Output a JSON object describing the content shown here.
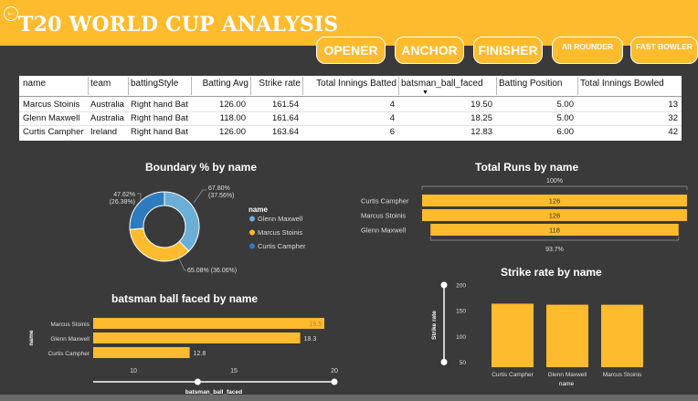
{
  "header": {
    "title": "T20 WORLD CUP ANALYSIS",
    "back_icon": "back-arrow-icon"
  },
  "nav": {
    "opener": "OPENER",
    "anchor": "ANCHOR",
    "finisher": "FINISHER",
    "all_rounder": "All ROUNDER",
    "fast_bowler": "FAST BOWLER"
  },
  "table": {
    "headers": [
      "name",
      "team",
      "battingStyle",
      "Batting Avg",
      "Strike rate",
      "Total Innings Batted",
      "batsman_ball_faced",
      "Batting Position",
      "Total Innings Bowled"
    ],
    "rows": [
      [
        "Marcus Stoinis",
        "Australia",
        "Right hand Bat",
        "126.00",
        "161.54",
        "4",
        "19.50",
        "5.00",
        "13"
      ],
      [
        "Glenn Maxwell",
        "Australia",
        "Right hand Bat",
        "118.00",
        "161.64",
        "4",
        "18.25",
        "5.00",
        "32"
      ],
      [
        "Curtis Campher",
        "Ireland",
        "Right hand Bat",
        "126.00",
        "163.64",
        "6",
        "12.83",
        "6.00",
        "42"
      ]
    ]
  },
  "colors": {
    "accent": "#fdbb2d",
    "blue_light": "#6baed6",
    "blue_dark": "#2f7bbf",
    "background": "#3a3a3a"
  },
  "chart_data": [
    {
      "type": "pie",
      "title": "Boundary % by name",
      "legend_title": "name",
      "legend_position": "right",
      "series": [
        {
          "name": "Glenn Maxwell",
          "value": 67.8,
          "label": "67.80%",
          "sublabel": "(37.56%)",
          "color": "#6baed6"
        },
        {
          "name": "Marcus Stoinis",
          "value": 65.08,
          "label": "65.08% (36.06%)",
          "color": "#fdbb2d"
        },
        {
          "name": "Curtis Campher",
          "value": 47.62,
          "label": "47.62%",
          "sublabel": "(26.38%)",
          "color": "#2f7bbf"
        }
      ]
    },
    {
      "type": "bar",
      "title": "Total Runs by name",
      "categories": [
        "Curtis Campher",
        "Marcus Stoinis",
        "Glenn Maxwell"
      ],
      "values": [
        126,
        126,
        118
      ],
      "top_label": "100%",
      "bottom_label": "93.7%"
    },
    {
      "type": "bar",
      "title": "batsman ball faced by name",
      "categories": [
        "Marcus Stoinis",
        "Glenn Maxwell",
        "Curtis Campher"
      ],
      "values": [
        19.5,
        18.3,
        12.8
      ],
      "xlabel": "batsman_ball_faced",
      "ylabel": "name",
      "xticks": [
        10,
        15,
        20
      ],
      "xlim": [
        8,
        20
      ]
    },
    {
      "type": "bar",
      "title": "Strike rate by name",
      "categories": [
        "Curtis Campher",
        "Glenn Maxwell",
        "Marcus Stoinis"
      ],
      "values": [
        163.64,
        161.64,
        161.54
      ],
      "xlabel": "name",
      "ylabel": "Strike rate",
      "yticks": [
        50,
        100,
        150,
        200
      ],
      "ylim": [
        40,
        200
      ]
    }
  ]
}
